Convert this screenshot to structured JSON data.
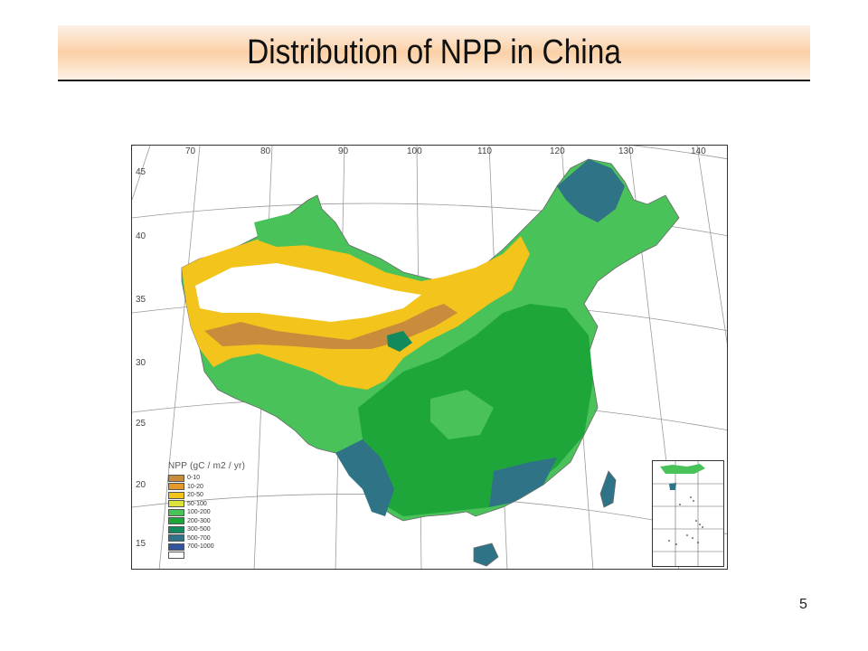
{
  "slide": {
    "title": "Distribution of NPP in China",
    "page_number": "5"
  },
  "map": {
    "longitude_labels": [
      "70",
      "80",
      "90",
      "100",
      "110",
      "120",
      "130",
      "140"
    ],
    "latitude_labels": [
      "45",
      "40",
      "35",
      "30",
      "25",
      "20",
      "15"
    ]
  },
  "legend": {
    "title": "NPP (gC / m2 / yr)",
    "items": [
      {
        "label": "0-10",
        "color": "#c98b3c"
      },
      {
        "label": "10-20",
        "color": "#e39a2a"
      },
      {
        "label": "20-50",
        "color": "#f2c41c"
      },
      {
        "label": "50-100",
        "color": "#d9e33a"
      },
      {
        "label": "100-200",
        "color": "#49c25a"
      },
      {
        "label": "200-300",
        "color": "#1fa63b"
      },
      {
        "label": "300-500",
        "color": "#138a5c"
      },
      {
        "label": "500-700",
        "color": "#2f7486"
      },
      {
        "label": "700-1000",
        "color": "#35539a"
      },
      {
        "label": "",
        "color": "#ffffff"
      }
    ]
  }
}
